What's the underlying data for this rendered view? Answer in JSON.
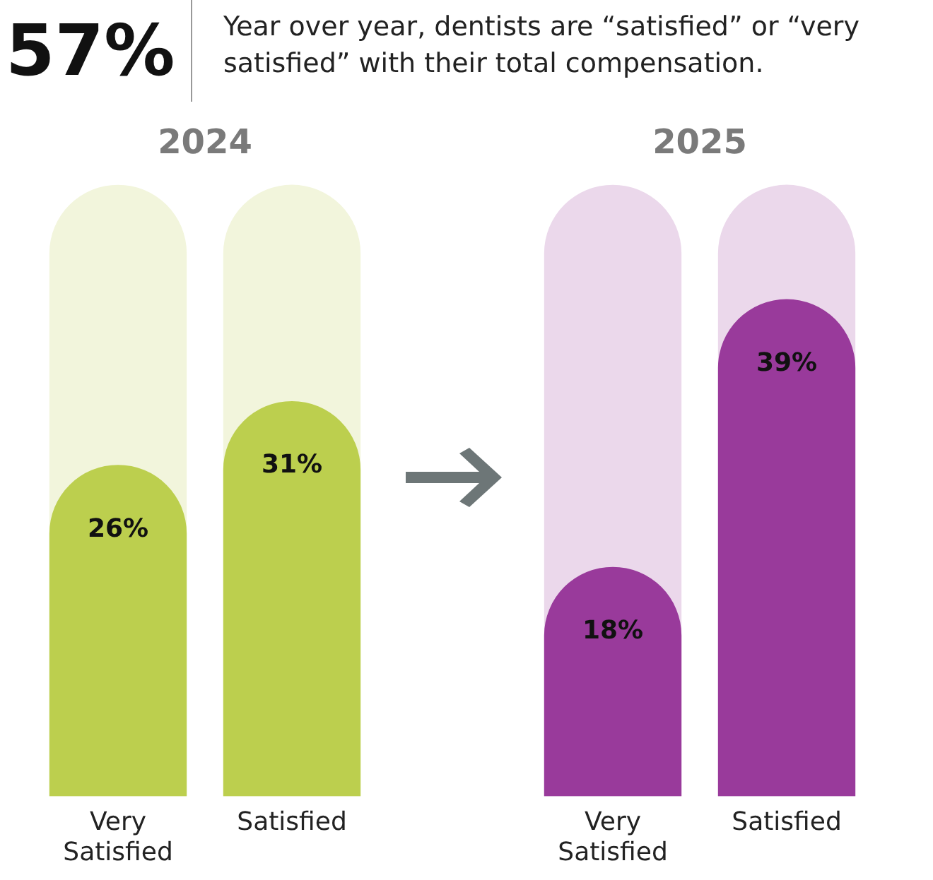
{
  "chart_data": [
    {
      "type": "other",
      "title": "57%",
      "subtitle": "Year over year, dentists are “satisfied” or “very satisfied” with their total compensation."
    },
    {
      "type": "bar",
      "title": "2024",
      "categories": [
        "Very Satisfied",
        "Satisfied"
      ],
      "values": [
        26,
        31
      ],
      "value_labels": [
        "26%",
        "31%"
      ],
      "color": "#bccf4e",
      "grid": false,
      "legend": false,
      "tick_labels": "x"
    },
    {
      "type": "bar",
      "title": "2025",
      "categories": [
        "Very Satisfied",
        "Satisfied"
      ],
      "values": [
        18,
        39
      ],
      "value_labels": [
        "18%",
        "39%"
      ],
      "color": "#993a9b",
      "grid": false,
      "legend": false,
      "tick_labels": "x"
    }
  ]
}
